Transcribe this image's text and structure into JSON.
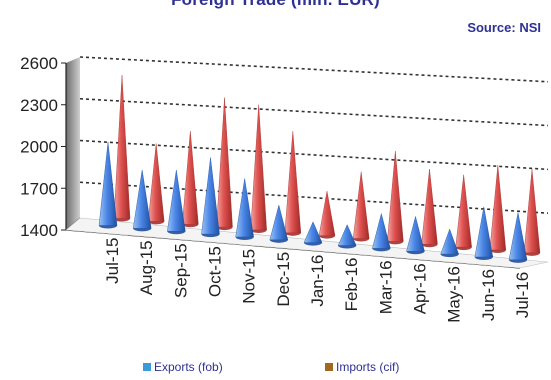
{
  "title": "Foreign Trade (mln. EUR)",
  "source": "Source: NSI",
  "chart_data": {
    "type": "bar",
    "categories": [
      "Jul-15",
      "Aug-15",
      "Sep-15",
      "Oct-15",
      "Nov-15",
      "Dec-15",
      "Jan-16",
      "Feb-16",
      "Mar-16",
      "Apr-16",
      "May-16",
      "Jun-16",
      "Jul-16"
    ],
    "series": [
      {
        "name": "Exports (fob)",
        "color": "#4A86E8",
        "values": [
          2000,
          1820,
          1840,
          1950,
          1820,
          1650,
          1550,
          1550,
          1650,
          1650,
          1580,
          1760,
          1740
        ]
      },
      {
        "name": "Imports (cif)",
        "color": "#E0524F",
        "values": [
          2430,
          1960,
          2070,
          2330,
          2300,
          2130,
          1720,
          1880,
          2050,
          1940,
          1920,
          2010,
          2000
        ]
      }
    ],
    "yticks": [
      1400,
      1700,
      2000,
      2300,
      2600
    ],
    "ylim": [
      1400,
      2600
    ],
    "grid": true,
    "legend_position": "bottom"
  },
  "legend": {
    "exports_label": "Exports (fob)",
    "imports_label": "Imports (cif)",
    "exports_swatch": "#3B9BD8",
    "imports_swatch": "#A0691E"
  }
}
